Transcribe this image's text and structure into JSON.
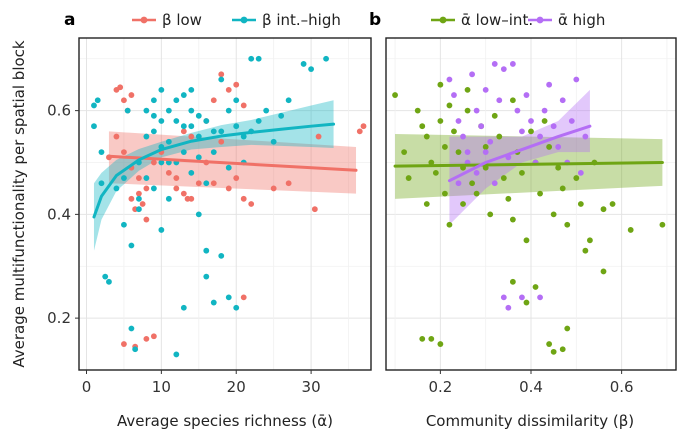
{
  "chart_data": [
    {
      "panel": "a",
      "type": "scatter",
      "xlabel": "Average species richness (ᾱ)",
      "ylabel": "Average multifunctionality per spatial block",
      "xlim": [
        -1,
        38
      ],
      "ylim": [
        0.1,
        0.74
      ],
      "xticks": [
        0,
        10,
        20,
        30
      ],
      "yticks": [
        0.2,
        0.4,
        0.6
      ],
      "grid": true,
      "legend_position": "top",
      "series": [
        {
          "name": "β low",
          "color": "#f07167",
          "points": [
            [
              4,
              0.64
            ],
            [
              4.5,
              0.645
            ],
            [
              5,
              0.62
            ],
            [
              5.5,
              0.6
            ],
            [
              6,
              0.63
            ],
            [
              4,
              0.55
            ],
            [
              5,
              0.52
            ],
            [
              6,
              0.49
            ],
            [
              7,
              0.47
            ],
            [
              8,
              0.45
            ],
            [
              7,
              0.44
            ],
            [
              6,
              0.43
            ],
            [
              6.5,
              0.41
            ],
            [
              7.5,
              0.42
            ],
            [
              9,
              0.5
            ],
            [
              10,
              0.52
            ],
            [
              11,
              0.48
            ],
            [
              12,
              0.47
            ],
            [
              13,
              0.44
            ],
            [
              13.5,
              0.43
            ],
            [
              14,
              0.43
            ],
            [
              15,
              0.46
            ],
            [
              16,
              0.5
            ],
            [
              17,
              0.46
            ],
            [
              18,
              0.54
            ],
            [
              19,
              0.45
            ],
            [
              20,
              0.47
            ],
            [
              21,
              0.43
            ],
            [
              22,
              0.42
            ],
            [
              21,
              0.24
            ],
            [
              17,
              0.62
            ],
            [
              18,
              0.67
            ],
            [
              19,
              0.64
            ],
            [
              20,
              0.65
            ],
            [
              21,
              0.61
            ],
            [
              13,
              0.56
            ],
            [
              14,
              0.55
            ],
            [
              16,
              0.58
            ],
            [
              30.5,
              0.41
            ],
            [
              37,
              0.57
            ],
            [
              36.5,
              0.56
            ],
            [
              31,
              0.55
            ],
            [
              5,
              0.15
            ],
            [
              8,
              0.16
            ],
            [
              9,
              0.165
            ],
            [
              6.5,
              0.145
            ],
            [
              3,
              0.51
            ],
            [
              8,
              0.39
            ],
            [
              12,
              0.45
            ],
            [
              25,
              0.45
            ],
            [
              27,
              0.46
            ]
          ],
          "fit": {
            "x": [
              3,
              36
            ],
            "y": [
              0.512,
              0.485
            ],
            "ci_low": [
              0.46,
              0.44
            ],
            "ci_high": [
              0.56,
              0.53
            ]
          }
        },
        {
          "name": "β int.–high",
          "color": "#11b5c2",
          "points": [
            [
              1,
              0.61
            ],
            [
              1.5,
              0.62
            ],
            [
              1,
              0.57
            ],
            [
              2,
              0.52
            ],
            [
              2,
              0.46
            ],
            [
              2.5,
              0.28
            ],
            [
              3,
              0.27
            ],
            [
              4,
              0.45
            ],
            [
              5,
              0.47
            ],
            [
              5,
              0.38
            ],
            [
              6,
              0.34
            ],
            [
              6,
              0.18
            ],
            [
              6.5,
              0.14
            ],
            [
              7,
              0.41
            ],
            [
              7,
              0.5
            ],
            [
              8,
              0.55
            ],
            [
              8,
              0.6
            ],
            [
              9,
              0.59
            ],
            [
              9,
              0.56
            ],
            [
              10,
              0.58
            ],
            [
              10,
              0.37
            ],
            [
              10,
              0.53
            ],
            [
              11,
              0.6
            ],
            [
              11,
              0.5
            ],
            [
              11,
              0.43
            ],
            [
              12,
              0.58
            ],
            [
              12,
              0.62
            ],
            [
              12,
              0.13
            ],
            [
              13,
              0.57
            ],
            [
              13,
              0.63
            ],
            [
              13,
              0.22
            ],
            [
              14,
              0.57
            ],
            [
              14,
              0.6
            ],
            [
              14,
              0.64
            ],
            [
              15,
              0.55
            ],
            [
              15,
              0.59
            ],
            [
              15,
              0.51
            ],
            [
              15,
              0.4
            ],
            [
              16,
              0.58
            ],
            [
              16,
              0.46
            ],
            [
              16,
              0.33
            ],
            [
              16,
              0.28
            ],
            [
              17,
              0.56
            ],
            [
              17,
              0.52
            ],
            [
              17,
              0.23
            ],
            [
              18,
              0.56
            ],
            [
              18,
              0.66
            ],
            [
              18,
              0.32
            ],
            [
              19,
              0.6
            ],
            [
              19,
              0.49
            ],
            [
              19,
              0.24
            ],
            [
              20,
              0.57
            ],
            [
              20,
              0.62
            ],
            [
              20,
              0.22
            ],
            [
              21,
              0.5
            ],
            [
              21,
              0.55
            ],
            [
              22,
              0.7
            ],
            [
              22,
              0.56
            ],
            [
              23,
              0.7
            ],
            [
              23,
              0.58
            ],
            [
              24,
              0.6
            ],
            [
              25,
              0.54
            ],
            [
              26,
              0.59
            ],
            [
              27,
              0.62
            ],
            [
              29,
              0.69
            ],
            [
              30,
              0.68
            ],
            [
              32,
              0.7
            ],
            [
              7,
              0.43
            ],
            [
              8,
              0.47
            ],
            [
              9,
              0.45
            ],
            [
              10,
              0.5
            ],
            [
              11,
              0.54
            ],
            [
              12,
              0.5
            ],
            [
              13,
              0.52
            ],
            [
              14,
              0.48
            ],
            [
              9,
              0.62
            ],
            [
              10,
              0.64
            ],
            [
              5.5,
              0.6
            ]
          ],
          "fit": {
            "x": [
              1,
              2,
              4,
              7,
              10,
              14,
              18,
              22,
              26,
              30,
              33
            ],
            "y": [
              0.395,
              0.435,
              0.475,
              0.505,
              0.525,
              0.541,
              0.551,
              0.558,
              0.564,
              0.57,
              0.574
            ],
            "ci_low": [
              0.33,
              0.39,
              0.445,
              0.484,
              0.51,
              0.525,
              0.53,
              0.534,
              0.532,
              0.53,
              0.528
            ],
            "ci_high": [
              0.46,
              0.48,
              0.505,
              0.526,
              0.54,
              0.557,
              0.572,
              0.582,
              0.596,
              0.61,
              0.62
            ]
          }
        }
      ]
    },
    {
      "panel": "b",
      "type": "scatter",
      "xlabel": "Community dissimilarity (β)",
      "ylabel": "",
      "xlim": [
        0.08,
        0.72
      ],
      "ylim": [
        0.1,
        0.74
      ],
      "xticks": [
        0.2,
        0.4,
        0.6
      ],
      "xtick_labels": [
        "0.2",
        "0.4",
        "0.6"
      ],
      "grid": true,
      "legend_position": "top",
      "series": [
        {
          "name": "ᾱ low–int.",
          "color": "#6fa514",
          "points": [
            [
              0.1,
              0.63
            ],
            [
              0.12,
              0.52
            ],
            [
              0.13,
              0.47
            ],
            [
              0.15,
              0.6
            ],
            [
              0.16,
              0.57
            ],
            [
              0.17,
              0.55
            ],
            [
              0.17,
              0.42
            ],
            [
              0.18,
              0.5
            ],
            [
              0.19,
              0.48
            ],
            [
              0.2,
              0.65
            ],
            [
              0.2,
              0.58
            ],
            [
              0.21,
              0.53
            ],
            [
              0.21,
              0.44
            ],
            [
              0.22,
              0.61
            ],
            [
              0.22,
              0.38
            ],
            [
              0.23,
              0.56
            ],
            [
              0.24,
              0.52
            ],
            [
              0.25,
              0.49
            ],
            [
              0.25,
              0.42
            ],
            [
              0.26,
              0.64
            ],
            [
              0.26,
              0.6
            ],
            [
              0.27,
              0.46
            ],
            [
              0.28,
              0.44
            ],
            [
              0.29,
              0.57
            ],
            [
              0.3,
              0.53
            ],
            [
              0.3,
              0.49
            ],
            [
              0.31,
              0.4
            ],
            [
              0.32,
              0.59
            ],
            [
              0.33,
              0.55
            ],
            [
              0.34,
              0.47
            ],
            [
              0.35,
              0.43
            ],
            [
              0.36,
              0.62
            ],
            [
              0.37,
              0.52
            ],
            [
              0.38,
              0.48
            ],
            [
              0.39,
              0.35
            ],
            [
              0.4,
              0.56
            ],
            [
              0.41,
              0.5
            ],
            [
              0.42,
              0.44
            ],
            [
              0.43,
              0.58
            ],
            [
              0.44,
              0.53
            ],
            [
              0.45,
              0.4
            ],
            [
              0.46,
              0.49
            ],
            [
              0.47,
              0.45
            ],
            [
              0.48,
              0.38
            ],
            [
              0.5,
              0.47
            ],
            [
              0.51,
              0.42
            ],
            [
              0.52,
              0.33
            ],
            [
              0.53,
              0.35
            ],
            [
              0.54,
              0.5
            ],
            [
              0.56,
              0.41
            ],
            [
              0.58,
              0.42
            ],
            [
              0.62,
              0.37
            ],
            [
              0.69,
              0.38
            ],
            [
              0.16,
              0.16
            ],
            [
              0.18,
              0.16
            ],
            [
              0.2,
              0.15
            ],
            [
              0.44,
              0.15
            ],
            [
              0.45,
              0.135
            ],
            [
              0.47,
              0.14
            ],
            [
              0.48,
              0.18
            ],
            [
              0.36,
              0.27
            ],
            [
              0.39,
              0.23
            ],
            [
              0.41,
              0.26
            ],
            [
              0.56,
              0.29
            ],
            [
              0.36,
              0.39
            ]
          ],
          "fit": {
            "x": [
              0.1,
              0.69
            ],
            "y": [
              0.493,
              0.5
            ],
            "ci_low": [
              0.43,
              0.455
            ],
            "ci_high": [
              0.555,
              0.545
            ]
          }
        },
        {
          "name": "ᾱ high",
          "color": "#b46ef5",
          "points": [
            [
              0.22,
              0.66
            ],
            [
              0.23,
              0.63
            ],
            [
              0.24,
              0.58
            ],
            [
              0.25,
              0.55
            ],
            [
              0.26,
              0.52
            ],
            [
              0.27,
              0.67
            ],
            [
              0.28,
              0.6
            ],
            [
              0.29,
              0.57
            ],
            [
              0.3,
              0.64
            ],
            [
              0.31,
              0.54
            ],
            [
              0.32,
              0.69
            ],
            [
              0.33,
              0.62
            ],
            [
              0.34,
              0.68
            ],
            [
              0.35,
              0.51
            ],
            [
              0.36,
              0.69
            ],
            [
              0.37,
              0.6
            ],
            [
              0.38,
              0.56
            ],
            [
              0.39,
              0.63
            ],
            [
              0.4,
              0.58
            ],
            [
              0.41,
              0.5
            ],
            [
              0.42,
              0.55
            ],
            [
              0.43,
              0.6
            ],
            [
              0.44,
              0.65
            ],
            [
              0.45,
              0.57
            ],
            [
              0.46,
              0.53
            ],
            [
              0.47,
              0.62
            ],
            [
              0.48,
              0.5
            ],
            [
              0.49,
              0.58
            ],
            [
              0.5,
              0.66
            ],
            [
              0.51,
              0.48
            ],
            [
              0.52,
              0.55
            ],
            [
              0.24,
              0.46
            ],
            [
              0.26,
              0.5
            ],
            [
              0.28,
              0.48
            ],
            [
              0.3,
              0.52
            ],
            [
              0.32,
              0.46
            ],
            [
              0.34,
              0.24
            ],
            [
              0.35,
              0.22
            ],
            [
              0.38,
              0.24
            ],
            [
              0.42,
              0.24
            ]
          ],
          "fit": {
            "x": [
              0.22,
              0.3,
              0.38,
              0.46,
              0.53
            ],
            "y": [
              0.465,
              0.5,
              0.525,
              0.55,
              0.57
            ],
            "ci_low": [
              0.38,
              0.45,
              0.5,
              0.52,
              0.52
            ],
            "ci_high": [
              0.55,
              0.55,
              0.55,
              0.58,
              0.64
            ]
          }
        }
      ]
    }
  ]
}
